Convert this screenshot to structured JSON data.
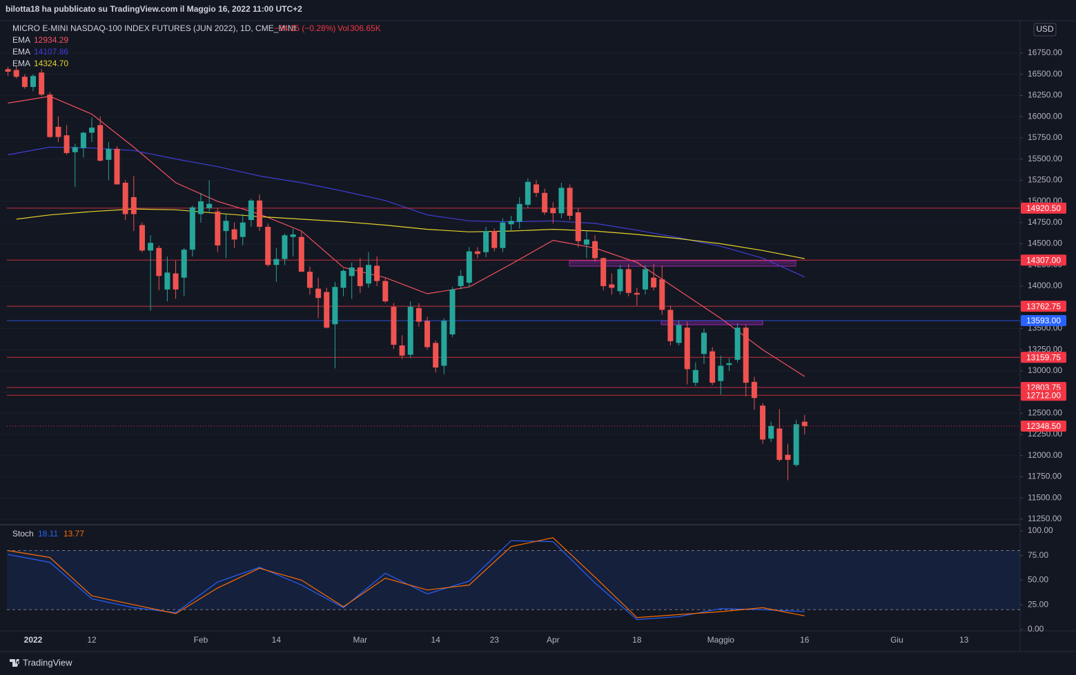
{
  "header": {
    "publisher": "bilotta18 ha pubblicato su TradingView.com il Maggio 16, 2022 11:00 UTC+2"
  },
  "footer": {
    "brand": "TradingView"
  },
  "chart_data": [
    {
      "type": "candlestick",
      "title": "MICRO E-MINI NASDAQ-100 INDEX FUTURES (JUN 2022), 1D, CME_MINI",
      "change": "−34.25 (−0.28%)",
      "volume_label": "Vol",
      "volume": "306.65K",
      "currency": "USD",
      "up_color": "#26a69a",
      "down_color": "#ef5350",
      "grid": true,
      "categories": [
        null,
        null,
        null,
        "2022",
        null,
        null,
        null,
        null,
        null,
        null,
        "12",
        null,
        null,
        null,
        null,
        null,
        null,
        null,
        null,
        null,
        null,
        null,
        null,
        "Feb",
        null,
        null,
        null,
        null,
        null,
        null,
        null,
        null,
        "14",
        null,
        null,
        null,
        null,
        null,
        null,
        null,
        null,
        null,
        "Mar",
        null,
        null,
        null,
        null,
        null,
        null,
        null,
        null,
        "14",
        null,
        null,
        null,
        null,
        null,
        null,
        "23",
        null,
        null,
        null,
        null,
        null,
        null,
        "Apr",
        null,
        null,
        null,
        null,
        null,
        null,
        null,
        null,
        null,
        "18",
        null,
        null,
        null,
        null,
        null,
        null,
        null,
        null,
        null,
        "Maggio",
        null,
        null,
        null,
        null,
        null,
        null,
        null,
        null,
        null,
        "16",
        null,
        null,
        null,
        null,
        null,
        null,
        null,
        null,
        null,
        null,
        "Giu",
        null,
        null,
        null,
        null,
        null,
        null,
        null,
        "13",
        null,
        null,
        null,
        null,
        null,
        null
      ],
      "open": [
        16560,
        16550,
        16470,
        16350,
        16520,
        16260,
        15880,
        15780,
        15580,
        15630,
        15810,
        15900,
        15490,
        15620,
        15220,
        15050,
        14720,
        14420,
        14450,
        13960,
        14150,
        14100,
        14430,
        14850,
        14920,
        14880,
        14650,
        14670,
        14580,
        14780,
        15010,
        14700,
        14250,
        14320,
        14580,
        14580,
        14170,
        13970,
        13930,
        13550,
        13980,
        14120,
        14220,
        14030,
        14240,
        14060,
        13756,
        13300,
        13190,
        13740,
        13590,
        13330,
        13060,
        13430,
        14000,
        14040,
        14410,
        14400,
        14650,
        14450,
        14730,
        14760,
        14960,
        15200,
        15100,
        14920,
        14860,
        15160,
        14870,
        14490,
        14530,
        14330,
        14020,
        13940,
        14200,
        13920,
        13960,
        14100,
        14080,
        13720,
        13330,
        13510,
        12860,
        13200,
        13230,
        12880,
        13070,
        13130,
        13510,
        12870,
        12590,
        12200,
        12320,
        12010,
        11890,
        12400,
        null,
        null,
        null,
        null,
        null,
        null,
        null,
        null,
        null,
        null,
        null,
        null,
        null,
        null,
        null,
        null,
        null,
        null,
        null,
        null,
        null,
        null,
        null,
        null,
        null
      ],
      "high": [
        16590,
        16600,
        16500,
        16500,
        16560,
        16290,
        16000,
        15900,
        15680,
        15820,
        15990,
        16000,
        15700,
        15650,
        15250,
        15300,
        14750,
        14600,
        14480,
        14350,
        14300,
        14450,
        14950,
        15100,
        15250,
        14920,
        14850,
        14750,
        14850,
        15030,
        15080,
        14740,
        14450,
        14620,
        14680,
        14640,
        14230,
        14100,
        13980,
        14050,
        14200,
        14280,
        14330,
        14400,
        14350,
        14100,
        13800,
        13420,
        13820,
        13800,
        13640,
        13360,
        13620,
        13990,
        14190,
        14460,
        14460,
        14700,
        14680,
        14800,
        14830,
        15050,
        15270,
        15250,
        15150,
        14990,
        15220,
        15200,
        14920,
        14650,
        14600,
        14340,
        14150,
        14250,
        14260,
        13980,
        14250,
        14260,
        14240,
        13770,
        13590,
        13580,
        13100,
        13500,
        13280,
        13180,
        13150,
        13560,
        13540,
        12930,
        12620,
        12400,
        12550,
        12140,
        12420,
        12480,
        null,
        null,
        null,
        null,
        null,
        null,
        null,
        null,
        null,
        null,
        null,
        null,
        null,
        null,
        null,
        null,
        null,
        null,
        null,
        null,
        null,
        null,
        null,
        null,
        null
      ],
      "low": [
        16480,
        16450,
        16330,
        16300,
        16240,
        15750,
        15700,
        15550,
        15170,
        15520,
        15700,
        15470,
        15250,
        15200,
        14780,
        14650,
        14400,
        13710,
        13950,
        13820,
        13850,
        13880,
        14350,
        14750,
        14880,
        14400,
        14330,
        14450,
        14480,
        14700,
        14650,
        14230,
        14050,
        14250,
        14350,
        14170,
        13900,
        13620,
        13500,
        13030,
        13880,
        13850,
        13920,
        13980,
        14000,
        13800,
        13260,
        13140,
        13150,
        13520,
        13250,
        12980,
        12960,
        13400,
        13960,
        13990,
        14330,
        14340,
        14410,
        14400,
        14650,
        14680,
        14920,
        15050,
        14840,
        14740,
        14800,
        14780,
        14460,
        14330,
        14290,
        13950,
        13900,
        13900,
        13880,
        13770,
        13900,
        13950,
        13660,
        13300,
        13300,
        12840,
        12820,
        13080,
        12830,
        12720,
        13000,
        13100,
        12700,
        12540,
        12140,
        12160,
        11930,
        11710,
        11870,
        12250,
        null,
        null,
        null,
        null,
        null,
        null,
        null,
        null,
        null,
        null,
        null,
        null,
        null,
        null,
        null,
        null,
        null,
        null,
        null,
        null,
        null,
        null,
        null,
        null,
        null
      ],
      "close": [
        16530,
        16470,
        16350,
        16480,
        16260,
        15760,
        15760,
        15570,
        15640,
        15810,
        15870,
        15480,
        15620,
        15200,
        14850,
        14850,
        14420,
        14510,
        14120,
        14160,
        13960,
        14430,
        14930,
        15000,
        14970,
        14480,
        14770,
        14550,
        14750,
        15010,
        14700,
        14250,
        14320,
        14600,
        14610,
        14170,
        13980,
        13860,
        13510,
        13990,
        14180,
        14220,
        14000,
        14250,
        14060,
        13820,
        13308,
        13180,
        13756,
        13580,
        13280,
        13040,
        13590,
        13960,
        14120,
        14410,
        14380,
        14650,
        14450,
        14750,
        14770,
        14970,
        15230,
        15100,
        14870,
        14860,
        15160,
        14830,
        14530,
        14550,
        14330,
        14000,
        13980,
        14200,
        13920,
        13900,
        14200,
        13985,
        13720,
        13350,
        13540,
        13020,
        13010,
        13450,
        12860,
        13060,
        13090,
        13510,
        12860,
        12680,
        12190,
        12350,
        11950,
        11950,
        12370,
        12348.5,
        null,
        null,
        null,
        null,
        null,
        null,
        null,
        null,
        null,
        null,
        null,
        null,
        null,
        null,
        null,
        null,
        null,
        null,
        null,
        null,
        null,
        null,
        null,
        null,
        null
      ],
      "lines": [
        {
          "name": "EMA",
          "color": "#f7525f",
          "last_label": "12934.29",
          "x": [
            0,
            5,
            10,
            15,
            20,
            25,
            30,
            35,
            40,
            45,
            50,
            55,
            60,
            65,
            70,
            75,
            80,
            85,
            90,
            95
          ],
          "values": [
            16160,
            16240,
            16030,
            15640,
            15220,
            15000,
            14850,
            14650,
            14220,
            14100,
            13910,
            13990,
            14260,
            14540,
            14450,
            14280,
            13950,
            13620,
            13250,
            12934.29
          ]
        },
        {
          "name": "EMA",
          "color": "#3f3fd6",
          "last_label": "14107.86",
          "x": [
            0,
            5,
            10,
            15,
            20,
            25,
            30,
            35,
            40,
            45,
            50,
            55,
            60,
            65,
            70,
            75,
            80,
            85,
            90,
            95
          ],
          "values": [
            15550,
            15640,
            15630,
            15600,
            15500,
            15410,
            15300,
            15220,
            15120,
            15010,
            14840,
            14770,
            14760,
            14770,
            14740,
            14660,
            14570,
            14470,
            14330,
            14107.86
          ]
        },
        {
          "name": "EMA",
          "color": "#e5d42a",
          "last_label": "14324.70",
          "x": [
            1,
            5,
            10,
            15,
            20,
            25,
            30,
            35,
            40,
            45,
            50,
            55,
            60,
            65,
            70,
            75,
            80,
            85,
            90,
            95
          ],
          "values": [
            14790,
            14840,
            14880,
            14910,
            14900,
            14860,
            14820,
            14790,
            14760,
            14720,
            14670,
            14640,
            14650,
            14670,
            14650,
            14610,
            14560,
            14500,
            14420,
            14324.7
          ]
        }
      ],
      "levels": [
        {
          "value": 14920.5,
          "label": "14920.50",
          "color": "#f23645"
        },
        {
          "value": 14307,
          "label": "14307.00",
          "color": "#f23645"
        },
        {
          "value": 13762.75,
          "label": "13762.75",
          "color": "#f23645"
        },
        {
          "value": 13593,
          "label": "13593.00",
          "color": "#2962ff"
        },
        {
          "value": 13159.75,
          "label": "13159.75",
          "color": "#f23645"
        },
        {
          "value": 12803.75,
          "label": "12803.75",
          "color": "#f23645"
        },
        {
          "value": 12712,
          "label": "12712.00",
          "color": "#f23645"
        }
      ],
      "price_line": {
        "value": 12348.5,
        "label": "12348.50",
        "color": "#f23645"
      },
      "ylim": [
        11193,
        17132
      ],
      "yticks": [
        {
          "value": 11250,
          "label": "11250.00"
        },
        {
          "value": 11500,
          "label": "11500.00"
        },
        {
          "value": 11750,
          "label": "11750.00"
        },
        {
          "value": 12000,
          "label": "12000.00"
        },
        {
          "value": 12250,
          "label": "12250.00"
        },
        {
          "value": 12500,
          "label": "12500.00"
        },
        {
          "value": 12750,
          "label": "12750.00"
        },
        {
          "value": 13000,
          "label": "13000.00"
        },
        {
          "value": 13250,
          "label": "13250.00"
        },
        {
          "value": 13500,
          "label": "13500.00"
        },
        {
          "value": 13750,
          "label": "13750.00"
        },
        {
          "value": 14000,
          "label": "14000.00"
        },
        {
          "value": 14250,
          "label": "14250.00"
        },
        {
          "value": 14500,
          "label": "14500.00"
        },
        {
          "value": 14750,
          "label": "14750.00"
        },
        {
          "value": 15000,
          "label": "15000.00"
        },
        {
          "value": 15250,
          "label": "15250.00"
        },
        {
          "value": 15500,
          "label": "15500.00"
        },
        {
          "value": 15750,
          "label": "15750.00"
        },
        {
          "value": 16000,
          "label": "16000.00"
        },
        {
          "value": 16250,
          "label": "16250.00"
        },
        {
          "value": 16500,
          "label": "16500.00"
        },
        {
          "value": 16750,
          "label": "16750.00"
        }
      ]
    },
    {
      "type": "line",
      "title": "Stoch",
      "band": [
        20,
        80
      ],
      "series": [
        {
          "color": "#2962ff",
          "x": [
            0,
            5,
            10,
            15,
            20,
            25,
            30,
            35,
            40,
            45,
            50,
            55,
            60,
            65,
            70,
            75,
            80,
            85,
            90,
            95
          ],
          "values": [
            76,
            68,
            31,
            22,
            17,
            48,
            63,
            45,
            22,
            57,
            36,
            49,
            90,
            89,
            47,
            10,
            13,
            21,
            20,
            18.11
          ]
        },
        {
          "color": "#ff6d00",
          "x": [
            0,
            5,
            10,
            15,
            20,
            25,
            30,
            35,
            40,
            45,
            50,
            55,
            60,
            65,
            70,
            75,
            80,
            85,
            90,
            95
          ],
          "values": [
            80,
            73,
            34,
            25,
            16,
            42,
            62,
            50,
            23,
            52,
            40,
            45,
            84,
            93,
            53,
            12,
            15,
            18,
            22,
            13.77
          ]
        }
      ],
      "ylim": [
        -1.5,
        105.5
      ],
      "yticks": [
        {
          "value": 0,
          "label": "0.00"
        },
        {
          "value": 25,
          "label": "25.00"
        },
        {
          "value": 50,
          "label": "50.00"
        },
        {
          "value": 75,
          "label": "75.00"
        },
        {
          "value": 100,
          "label": "100.00"
        }
      ]
    }
  ]
}
